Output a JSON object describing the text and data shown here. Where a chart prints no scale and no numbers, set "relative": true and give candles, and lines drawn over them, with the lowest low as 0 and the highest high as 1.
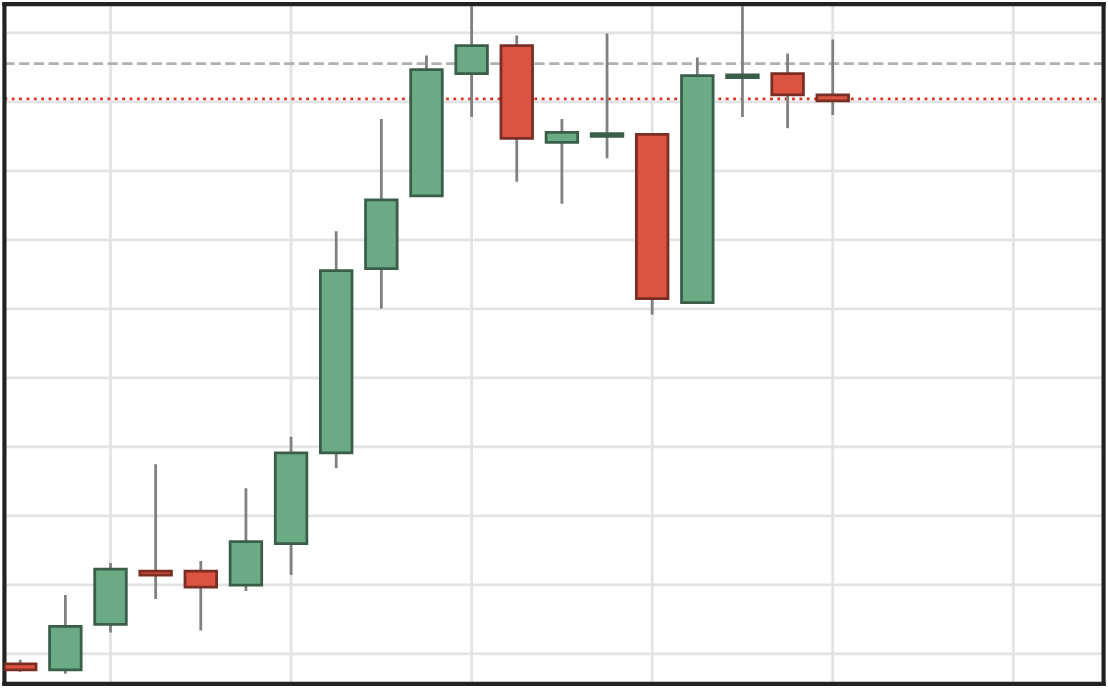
{
  "chart_data": {
    "type": "candlestick",
    "relative": true,
    "grid": true,
    "categories": [
      null,
      null,
      null,
      null,
      null,
      null,
      null,
      null,
      null,
      null,
      null,
      null,
      null,
      null,
      null,
      null,
      null,
      null,
      null
    ],
    "ohlc": [
      [
        0.015,
        0.021,
        0.003,
        0.006
      ],
      [
        0.006,
        0.118,
        0.0,
        0.071
      ],
      [
        0.074,
        0.166,
        0.062,
        0.157
      ],
      [
        0.154,
        0.314,
        0.112,
        0.148
      ],
      [
        0.154,
        0.169,
        0.065,
        0.13
      ],
      [
        0.133,
        0.278,
        0.124,
        0.198
      ],
      [
        0.195,
        0.355,
        0.148,
        0.331
      ],
      [
        0.331,
        0.663,
        0.308,
        0.604
      ],
      [
        0.607,
        0.831,
        0.547,
        0.71
      ],
      [
        0.716,
        0.926,
        0.716,
        0.905
      ],
      [
        0.899,
        1.0,
        0.834,
        0.941
      ],
      [
        0.941,
        0.956,
        0.737,
        0.802
      ],
      [
        0.796,
        0.831,
        0.704,
        0.811
      ],
      [
        0.805,
        0.959,
        0.772,
        0.808
      ],
      [
        0.808,
        0.808,
        0.538,
        0.562
      ],
      [
        0.556,
        0.923,
        0.556,
        0.896
      ],
      [
        0.893,
        1.0,
        0.834,
        0.896
      ],
      [
        0.899,
        0.929,
        0.817,
        0.867
      ],
      [
        0.867,
        0.95,
        0.837,
        0.858
      ]
    ],
    "colors": [
      "#dd5341",
      "#6aaa85",
      "#6aaa85",
      "#dd5341",
      "#dd5341",
      "#6aaa85",
      "#6aaa85",
      "#6aaa85",
      "#6aaa85",
      "#6aaa85",
      "#6aaa85",
      "#dd5341",
      "#6aaa85",
      "#6aaa85",
      "#dd5341",
      "#6aaa85",
      "#6aaa85",
      "#dd5341",
      "#dd5341"
    ],
    "ref_lines": [
      {
        "axis": "y",
        "value": 0.914,
        "color": "#b0b0b0",
        "line_style": "dashed"
      },
      {
        "axis": "y",
        "value": 0.861,
        "color": "#dd3322",
        "line_style": "dotted"
      }
    ]
  }
}
